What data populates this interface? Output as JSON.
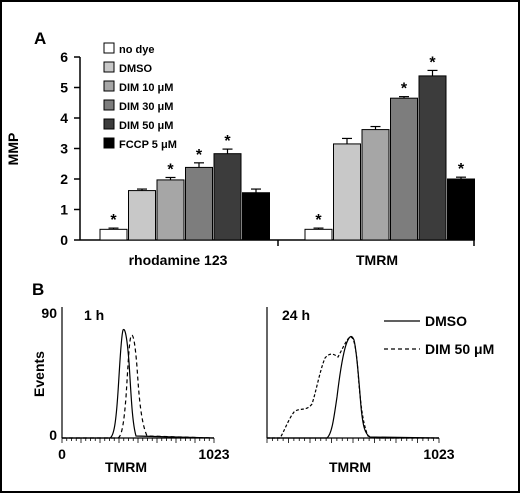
{
  "chart_data": [
    {
      "panel": "A",
      "type": "bar",
      "ylabel": "MMP",
      "ylim": [
        0,
        6
      ],
      "yticks": [
        0,
        1,
        2,
        3,
        4,
        5,
        6
      ],
      "groups": [
        "rhodamine 123",
        "TMRM"
      ],
      "series": [
        {
          "name": "no dye",
          "color": "#ffffff",
          "values": [
            0.35,
            0.35
          ],
          "errors": [
            0.04,
            0.04
          ],
          "significant": [
            true,
            true
          ]
        },
        {
          "name": "DMSO",
          "color": "#c8c8c8",
          "values": [
            1.62,
            3.15
          ],
          "errors": [
            0.05,
            0.18
          ],
          "significant": [
            false,
            false
          ]
        },
        {
          "name": "DIM 10  μM",
          "color": "#a6a6a6",
          "values": [
            1.97,
            3.62
          ],
          "errors": [
            0.08,
            0.1
          ],
          "significant": [
            true,
            false
          ]
        },
        {
          "name": "DIM 30  μM",
          "color": "#7d7d7d",
          "values": [
            2.38,
            4.65
          ],
          "errors": [
            0.15,
            0.05
          ],
          "significant": [
            true,
            true
          ]
        },
        {
          "name": "DIM 50  μM",
          "color": "#3c3c3c",
          "values": [
            2.83,
            5.38
          ],
          "errors": [
            0.15,
            0.18
          ],
          "significant": [
            true,
            true
          ]
        },
        {
          "name": "FCCP 5  μM",
          "color": "#000000",
          "values": [
            1.55,
            2.0
          ],
          "errors": [
            0.12,
            0.06
          ],
          "significant": [
            false,
            true
          ]
        }
      ],
      "significance_marker": "*",
      "legend_position": "top-left"
    },
    {
      "panel": "B",
      "type": "line",
      "ylabel": "Events",
      "yticks": [
        "90",
        "0"
      ],
      "subplots": [
        {
          "title": "1 h",
          "xlabel": "TMRM",
          "xticks": [
            "0",
            "1023"
          ]
        },
        {
          "title": "24 h",
          "xlabel": "TMRM",
          "xticks": [
            "1023"
          ]
        }
      ],
      "legend": [
        {
          "name": "DMSO",
          "style": "solid"
        },
        {
          "name": "DIM 50 μM",
          "style": "dashed"
        }
      ]
    }
  ],
  "panel_labels": {
    "a": "A",
    "b": "B"
  }
}
